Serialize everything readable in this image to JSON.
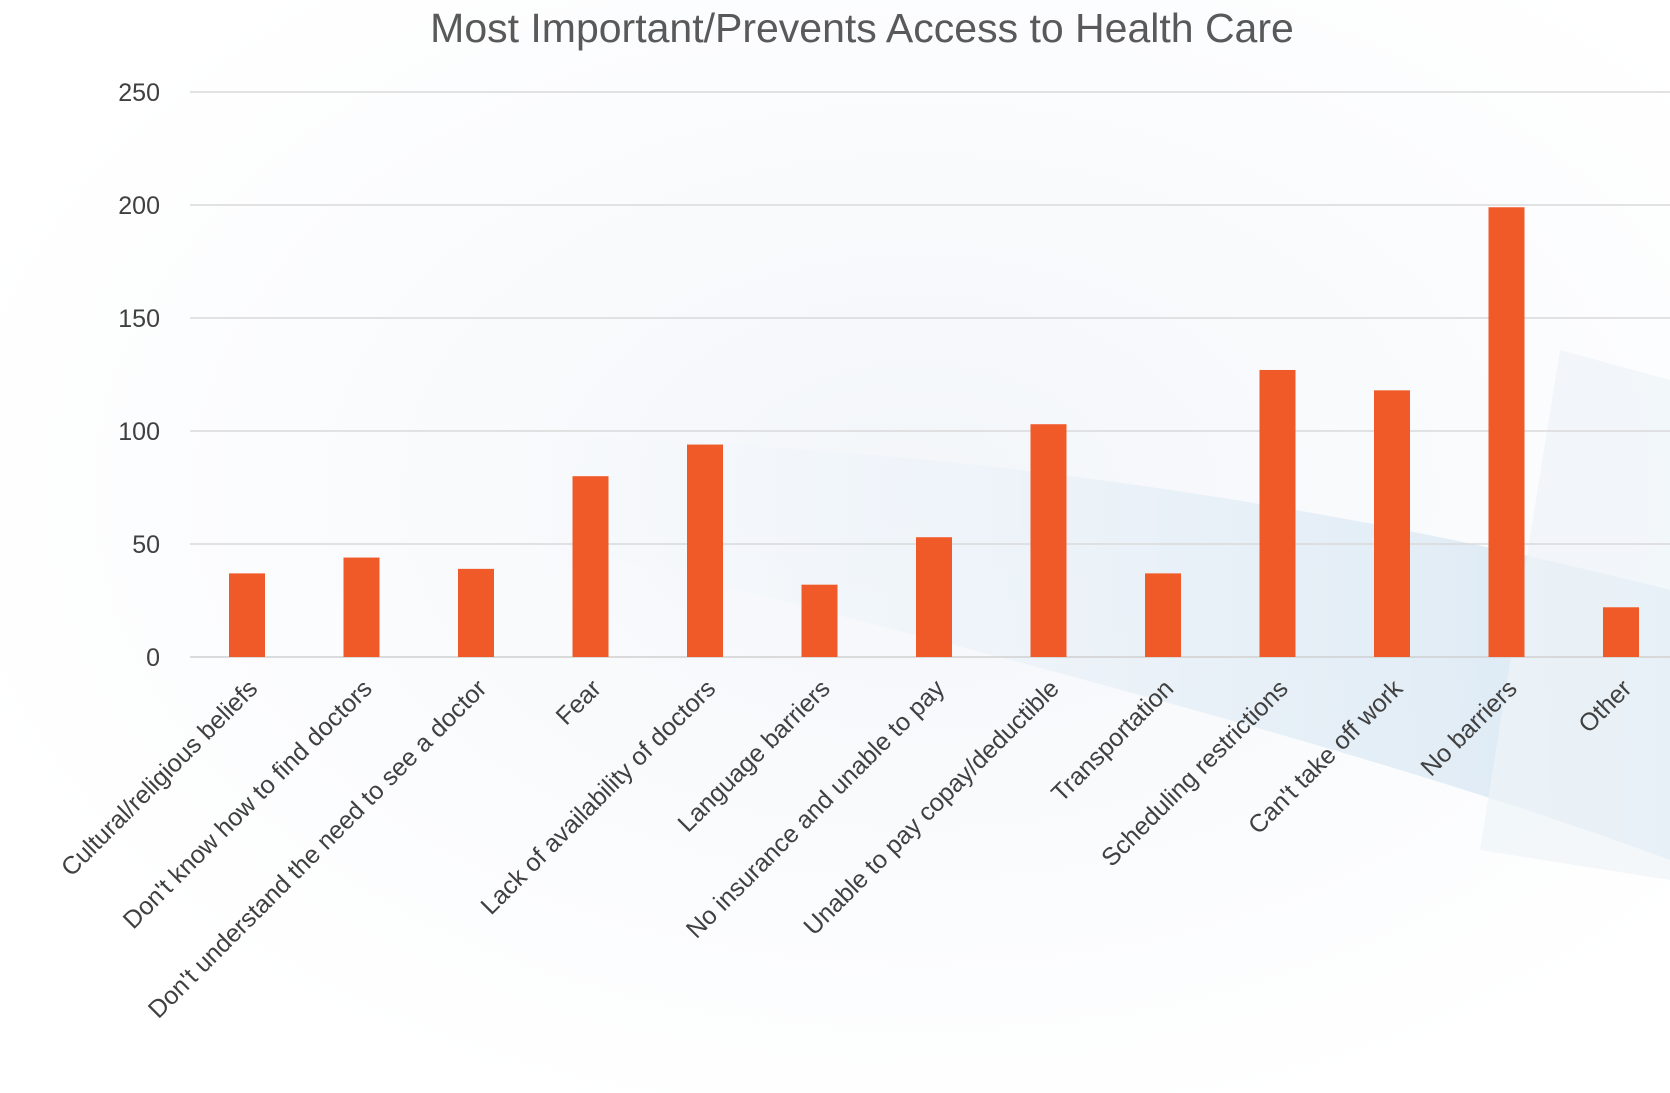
{
  "chart_data": {
    "type": "bar",
    "title": "Most Important/Prevents Access to Health Care",
    "xlabel": "",
    "ylabel": "",
    "ylim": [
      0,
      250
    ],
    "yticks": [
      0,
      50,
      100,
      150,
      200,
      250
    ],
    "grid": true,
    "legend": "none",
    "bar_color": "#f05a28",
    "categories": [
      "Cultural/religious beliefs",
      "Don't know how to find doctors",
      "Don't understand the need to see a doctor",
      "Fear",
      "Lack of availability of doctors",
      "Language barriers",
      "No insurance and unable to pay",
      "Unable to pay copay/deductible",
      "Transportation",
      "Scheduling restrictions",
      "Can't take off work",
      "No barriers",
      "Other"
    ],
    "values": [
      37,
      44,
      39,
      80,
      94,
      32,
      53,
      103,
      37,
      127,
      118,
      199,
      22
    ]
  }
}
